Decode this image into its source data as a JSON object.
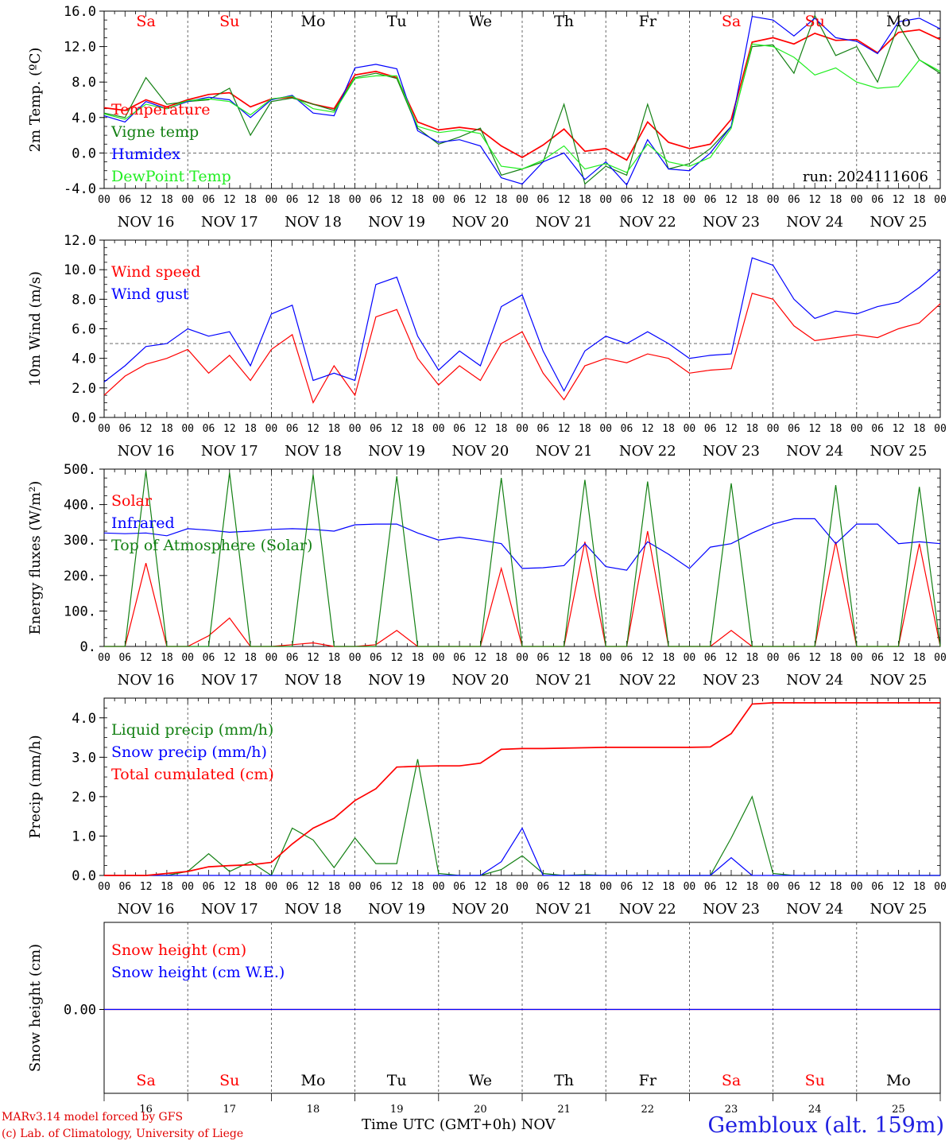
{
  "chart_data": [
    {
      "type": "line",
      "ylabel": "2m Temp. (ºC)",
      "ylim": [
        -4,
        16
      ],
      "yticks": [
        "-4.0",
        "0.0",
        "4.0",
        "8.0",
        "12.0",
        "16.0"
      ],
      "run_label": "run: 2024111606",
      "reference_line": 0,
      "x_hours": [
        0,
        6,
        12,
        18,
        24,
        30,
        36,
        42,
        48,
        54,
        60,
        66,
        72,
        78,
        84,
        90,
        96,
        102,
        108,
        114,
        120,
        126,
        132,
        138,
        144,
        150,
        156,
        162,
        168,
        174,
        180,
        186,
        192,
        198,
        204,
        210,
        216,
        222,
        228,
        234,
        240
      ],
      "series": [
        {
          "name": "Temperature",
          "color": "#ff0000",
          "values": [
            5.1,
            4.8,
            6.0,
            5.2,
            6.0,
            6.6,
            6.8,
            5.2,
            6.1,
            6.3,
            5.5,
            5.0,
            8.8,
            9.2,
            8.5,
            3.5,
            2.6,
            2.9,
            2.6,
            0.8,
            -0.5,
            0.9,
            2.7,
            0.2,
            0.5,
            -0.8,
            3.5,
            1.2,
            0.5,
            1.0,
            3.8,
            12.5,
            13.0,
            12.3,
            13.5,
            12.7,
            12.8,
            11.3,
            13.6,
            13.9,
            12.8
          ]
        },
        {
          "name": "Vigne temp",
          "color": "#138013",
          "values": [
            4.5,
            4.0,
            8.5,
            5.5,
            5.8,
            6.0,
            7.3,
            2.0,
            5.8,
            6.2,
            5.5,
            4.8,
            8.5,
            9.0,
            8.4,
            2.8,
            1.0,
            1.8,
            2.8,
            -2.5,
            -1.8,
            -1.0,
            5.5,
            -3.5,
            -1.5,
            -2.5,
            5.5,
            -1.8,
            -1.2,
            0.5,
            3.0,
            12.0,
            12.2,
            9.0,
            15.5,
            11.0,
            12.0,
            8.0,
            14.5,
            10.5,
            9.0
          ]
        },
        {
          "name": "Humidex",
          "color": "#0000ff",
          "values": [
            4.2,
            3.5,
            5.8,
            5.0,
            5.8,
            6.3,
            6.0,
            4.0,
            6.0,
            6.5,
            4.5,
            4.2,
            9.6,
            10.0,
            9.5,
            2.5,
            1.2,
            1.5,
            0.8,
            -2.8,
            -3.5,
            -1.0,
            0.0,
            -3.0,
            -1.0,
            -3.6,
            1.5,
            -1.8,
            -2.0,
            0.0,
            3.0,
            15.4,
            15.0,
            13.2,
            15.2,
            13.0,
            12.6,
            11.2,
            14.8,
            15.2,
            14.0
          ]
        },
        {
          "name": "DewPoint Temp",
          "color": "#22ee22",
          "values": [
            4.4,
            3.8,
            5.5,
            5.0,
            5.9,
            6.1,
            5.8,
            4.3,
            6.1,
            6.4,
            5.0,
            4.6,
            8.4,
            8.7,
            8.7,
            3.0,
            2.3,
            2.6,
            2.2,
            -1.5,
            -1.8,
            -0.8,
            0.8,
            -1.8,
            -1.2,
            -2.2,
            1.0,
            -1.0,
            -1.5,
            -0.5,
            2.8,
            12.3,
            12.0,
            10.8,
            8.8,
            9.6,
            8.0,
            7.3,
            7.5,
            10.5,
            9.2
          ]
        }
      ]
    },
    {
      "type": "line",
      "ylabel": "10m Wind (m/s)",
      "ylim": [
        0,
        12
      ],
      "yticks": [
        "0.0",
        "2.0",
        "4.0",
        "6.0",
        "8.0",
        "10.0",
        "12.0"
      ],
      "reference_line": 5,
      "x_hours": [
        0,
        6,
        12,
        18,
        24,
        30,
        36,
        42,
        48,
        54,
        60,
        66,
        72,
        78,
        84,
        90,
        96,
        102,
        108,
        114,
        120,
        126,
        132,
        138,
        144,
        150,
        156,
        162,
        168,
        174,
        180,
        186,
        192,
        198,
        204,
        210,
        216,
        222,
        228,
        234,
        240
      ],
      "series": [
        {
          "name": "Wind speed",
          "color": "#ff0000",
          "values": [
            1.5,
            2.8,
            3.6,
            4.0,
            4.6,
            3.0,
            4.2,
            2.5,
            4.6,
            5.6,
            1.0,
            3.5,
            1.5,
            6.8,
            7.3,
            4.0,
            2.2,
            3.5,
            2.5,
            5.0,
            5.8,
            3.0,
            1.2,
            3.5,
            4.0,
            3.7,
            4.3,
            4.0,
            3.0,
            3.2,
            3.3,
            8.4,
            8.0,
            6.2,
            5.2,
            5.4,
            5.6,
            5.4,
            6.0,
            6.4,
            7.7
          ]
        },
        {
          "name": "Wind gust",
          "color": "#0000ff",
          "values": [
            2.4,
            3.5,
            4.8,
            5.0,
            6.0,
            5.5,
            5.8,
            3.5,
            7.0,
            7.6,
            2.5,
            3.0,
            2.5,
            9.0,
            9.5,
            5.5,
            3.2,
            4.5,
            3.5,
            7.5,
            8.3,
            4.5,
            1.8,
            4.5,
            5.5,
            5.0,
            5.8,
            5.0,
            4.0,
            4.2,
            4.3,
            10.8,
            10.3,
            8.0,
            6.7,
            7.2,
            7.0,
            7.5,
            7.8,
            8.8,
            10.0
          ]
        }
      ]
    },
    {
      "type": "line",
      "ylabel": "Energy fluxes (W/m²)",
      "ylim": [
        0,
        500
      ],
      "yticks": [
        "0.",
        "100.",
        "200.",
        "300.",
        "400.",
        "500."
      ],
      "x_hours": [
        0,
        6,
        12,
        18,
        24,
        30,
        36,
        42,
        48,
        54,
        60,
        66,
        72,
        78,
        84,
        90,
        96,
        102,
        108,
        114,
        120,
        126,
        132,
        138,
        144,
        150,
        156,
        162,
        168,
        174,
        180,
        186,
        192,
        198,
        204,
        210,
        216,
        222,
        228,
        234,
        240
      ],
      "series": [
        {
          "name": "Solar",
          "color": "#ff0000",
          "values": [
            0,
            0,
            235,
            0,
            0,
            30,
            80,
            0,
            0,
            5,
            10,
            0,
            0,
            5,
            45,
            0,
            0,
            0,
            0,
            220,
            0,
            0,
            0,
            295,
            0,
            0,
            325,
            0,
            0,
            0,
            45,
            0,
            0,
            0,
            0,
            295,
            0,
            0,
            0,
            290,
            0
          ]
        },
        {
          "name": "Infrared",
          "color": "#0000ff",
          "values": [
            320,
            318,
            320,
            312,
            332,
            328,
            322,
            325,
            330,
            332,
            330,
            325,
            343,
            345,
            345,
            320,
            300,
            308,
            300,
            290,
            220,
            222,
            228,
            290,
            225,
            215,
            295,
            260,
            220,
            280,
            290,
            320,
            345,
            360,
            360,
            290,
            345,
            345,
            290,
            295,
            290
          ]
        },
        {
          "name": "Top of Atmosphere (Solar)",
          "color": "#138013",
          "values": [
            0,
            0,
            495,
            0,
            0,
            0,
            490,
            0,
            0,
            0,
            485,
            0,
            0,
            0,
            480,
            0,
            0,
            0,
            0,
            475,
            0,
            0,
            0,
            470,
            0,
            0,
            465,
            0,
            0,
            0,
            460,
            0,
            0,
            0,
            0,
            455,
            0,
            0,
            0,
            450,
            0
          ]
        }
      ]
    },
    {
      "type": "line",
      "ylabel": "Precip (mm/h)",
      "ylim": [
        0,
        4.5
      ],
      "yticks": [
        "0.0",
        "1.0",
        "2.0",
        "3.0",
        "4.0"
      ],
      "x_hours": [
        0,
        6,
        12,
        18,
        24,
        30,
        36,
        42,
        48,
        54,
        60,
        66,
        72,
        78,
        84,
        90,
        96,
        102,
        108,
        114,
        120,
        126,
        132,
        138,
        144,
        150,
        156,
        162,
        168,
        174,
        180,
        186,
        192,
        198,
        204,
        210,
        216,
        222,
        228,
        234,
        240
      ],
      "series": [
        {
          "name": "Liquid precip (mm/h)",
          "color": "#138013",
          "values": [
            0,
            0,
            0,
            0,
            0.1,
            0.55,
            0.1,
            0.35,
            0,
            1.2,
            0.9,
            0.2,
            0.95,
            0.3,
            0.3,
            2.95,
            0.05,
            0,
            0,
            0.15,
            0.5,
            0.05,
            0,
            0.02,
            0,
            0,
            0,
            0,
            0,
            0,
            0.95,
            2.0,
            0.05,
            0,
            0,
            0,
            0,
            0,
            0,
            0,
            0
          ]
        },
        {
          "name": "Snow precip (mm/h)",
          "color": "#0000ff",
          "values": [
            0,
            0,
            0,
            0,
            0,
            0,
            0,
            0,
            0,
            0,
            0,
            0,
            0,
            0,
            0,
            0,
            0,
            0,
            0,
            0.35,
            1.2,
            0,
            0,
            0,
            0,
            0,
            0,
            0,
            0,
            0,
            0.45,
            0,
            0,
            0,
            0,
            0,
            0,
            0,
            0,
            0,
            0
          ]
        },
        {
          "name": "Total cumulated (cm)",
          "color": "#ff0000",
          "values": [
            0,
            0,
            0,
            0.05,
            0.1,
            0.22,
            0.25,
            0.27,
            0.33,
            0.8,
            1.2,
            1.45,
            1.9,
            2.2,
            2.75,
            2.77,
            2.78,
            2.78,
            2.85,
            3.2,
            3.22,
            3.22,
            3.23,
            3.24,
            3.25,
            3.25,
            3.25,
            3.25,
            3.25,
            3.26,
            3.6,
            4.35,
            4.38,
            4.38,
            4.38,
            4.38,
            4.38,
            4.38,
            4.38,
            4.38,
            4.38
          ]
        }
      ]
    },
    {
      "type": "line",
      "ylabel": "Snow height (cm)",
      "yticks": [
        "0.00"
      ],
      "x_hours": [
        0,
        240
      ],
      "series": [
        {
          "name": "Snow height (cm)",
          "color": "#ff0000",
          "values": [
            0,
            0
          ]
        },
        {
          "name": "Snow height (cm W.E.)",
          "color": "#0000ff",
          "values": [
            0,
            0
          ]
        }
      ]
    }
  ],
  "axis": {
    "hour_labels": [
      "00",
      "06",
      "12",
      "18"
    ],
    "end_label": "00",
    "date_labels": [
      "NOV 16",
      "NOV 17",
      "NOV 18",
      "NOV 19",
      "NOV 20",
      "NOV 21",
      "NOV 22",
      "NOV 23",
      "NOV 24",
      "NOV 25"
    ],
    "weekdays": [
      {
        "label": "Sa",
        "color": "#ff0000"
      },
      {
        "label": "Su",
        "color": "#ff0000"
      },
      {
        "label": "Mo",
        "color": "#000000"
      },
      {
        "label": "Tu",
        "color": "#000000"
      },
      {
        "label": "We",
        "color": "#000000"
      },
      {
        "label": "Th",
        "color": "#000000"
      },
      {
        "label": "Fr",
        "color": "#000000"
      },
      {
        "label": "Sa",
        "color": "#ff0000"
      },
      {
        "label": "Su",
        "color": "#ff0000"
      },
      {
        "label": "Mo",
        "color": "#000000"
      }
    ],
    "day_numbers": [
      "16",
      "17",
      "18",
      "19",
      "20",
      "21",
      "22",
      "23",
      "24",
      "25"
    ]
  },
  "footer": {
    "credit_line1": "MARv3.14 model forced by GFS",
    "credit_line2": "(c) Lab. of Climatology, University of Liege",
    "xaxis_title": "Time UTC (GMT+0h)",
    "xaxis_month": "NOV",
    "station": "Gembloux (alt. 159m)"
  }
}
